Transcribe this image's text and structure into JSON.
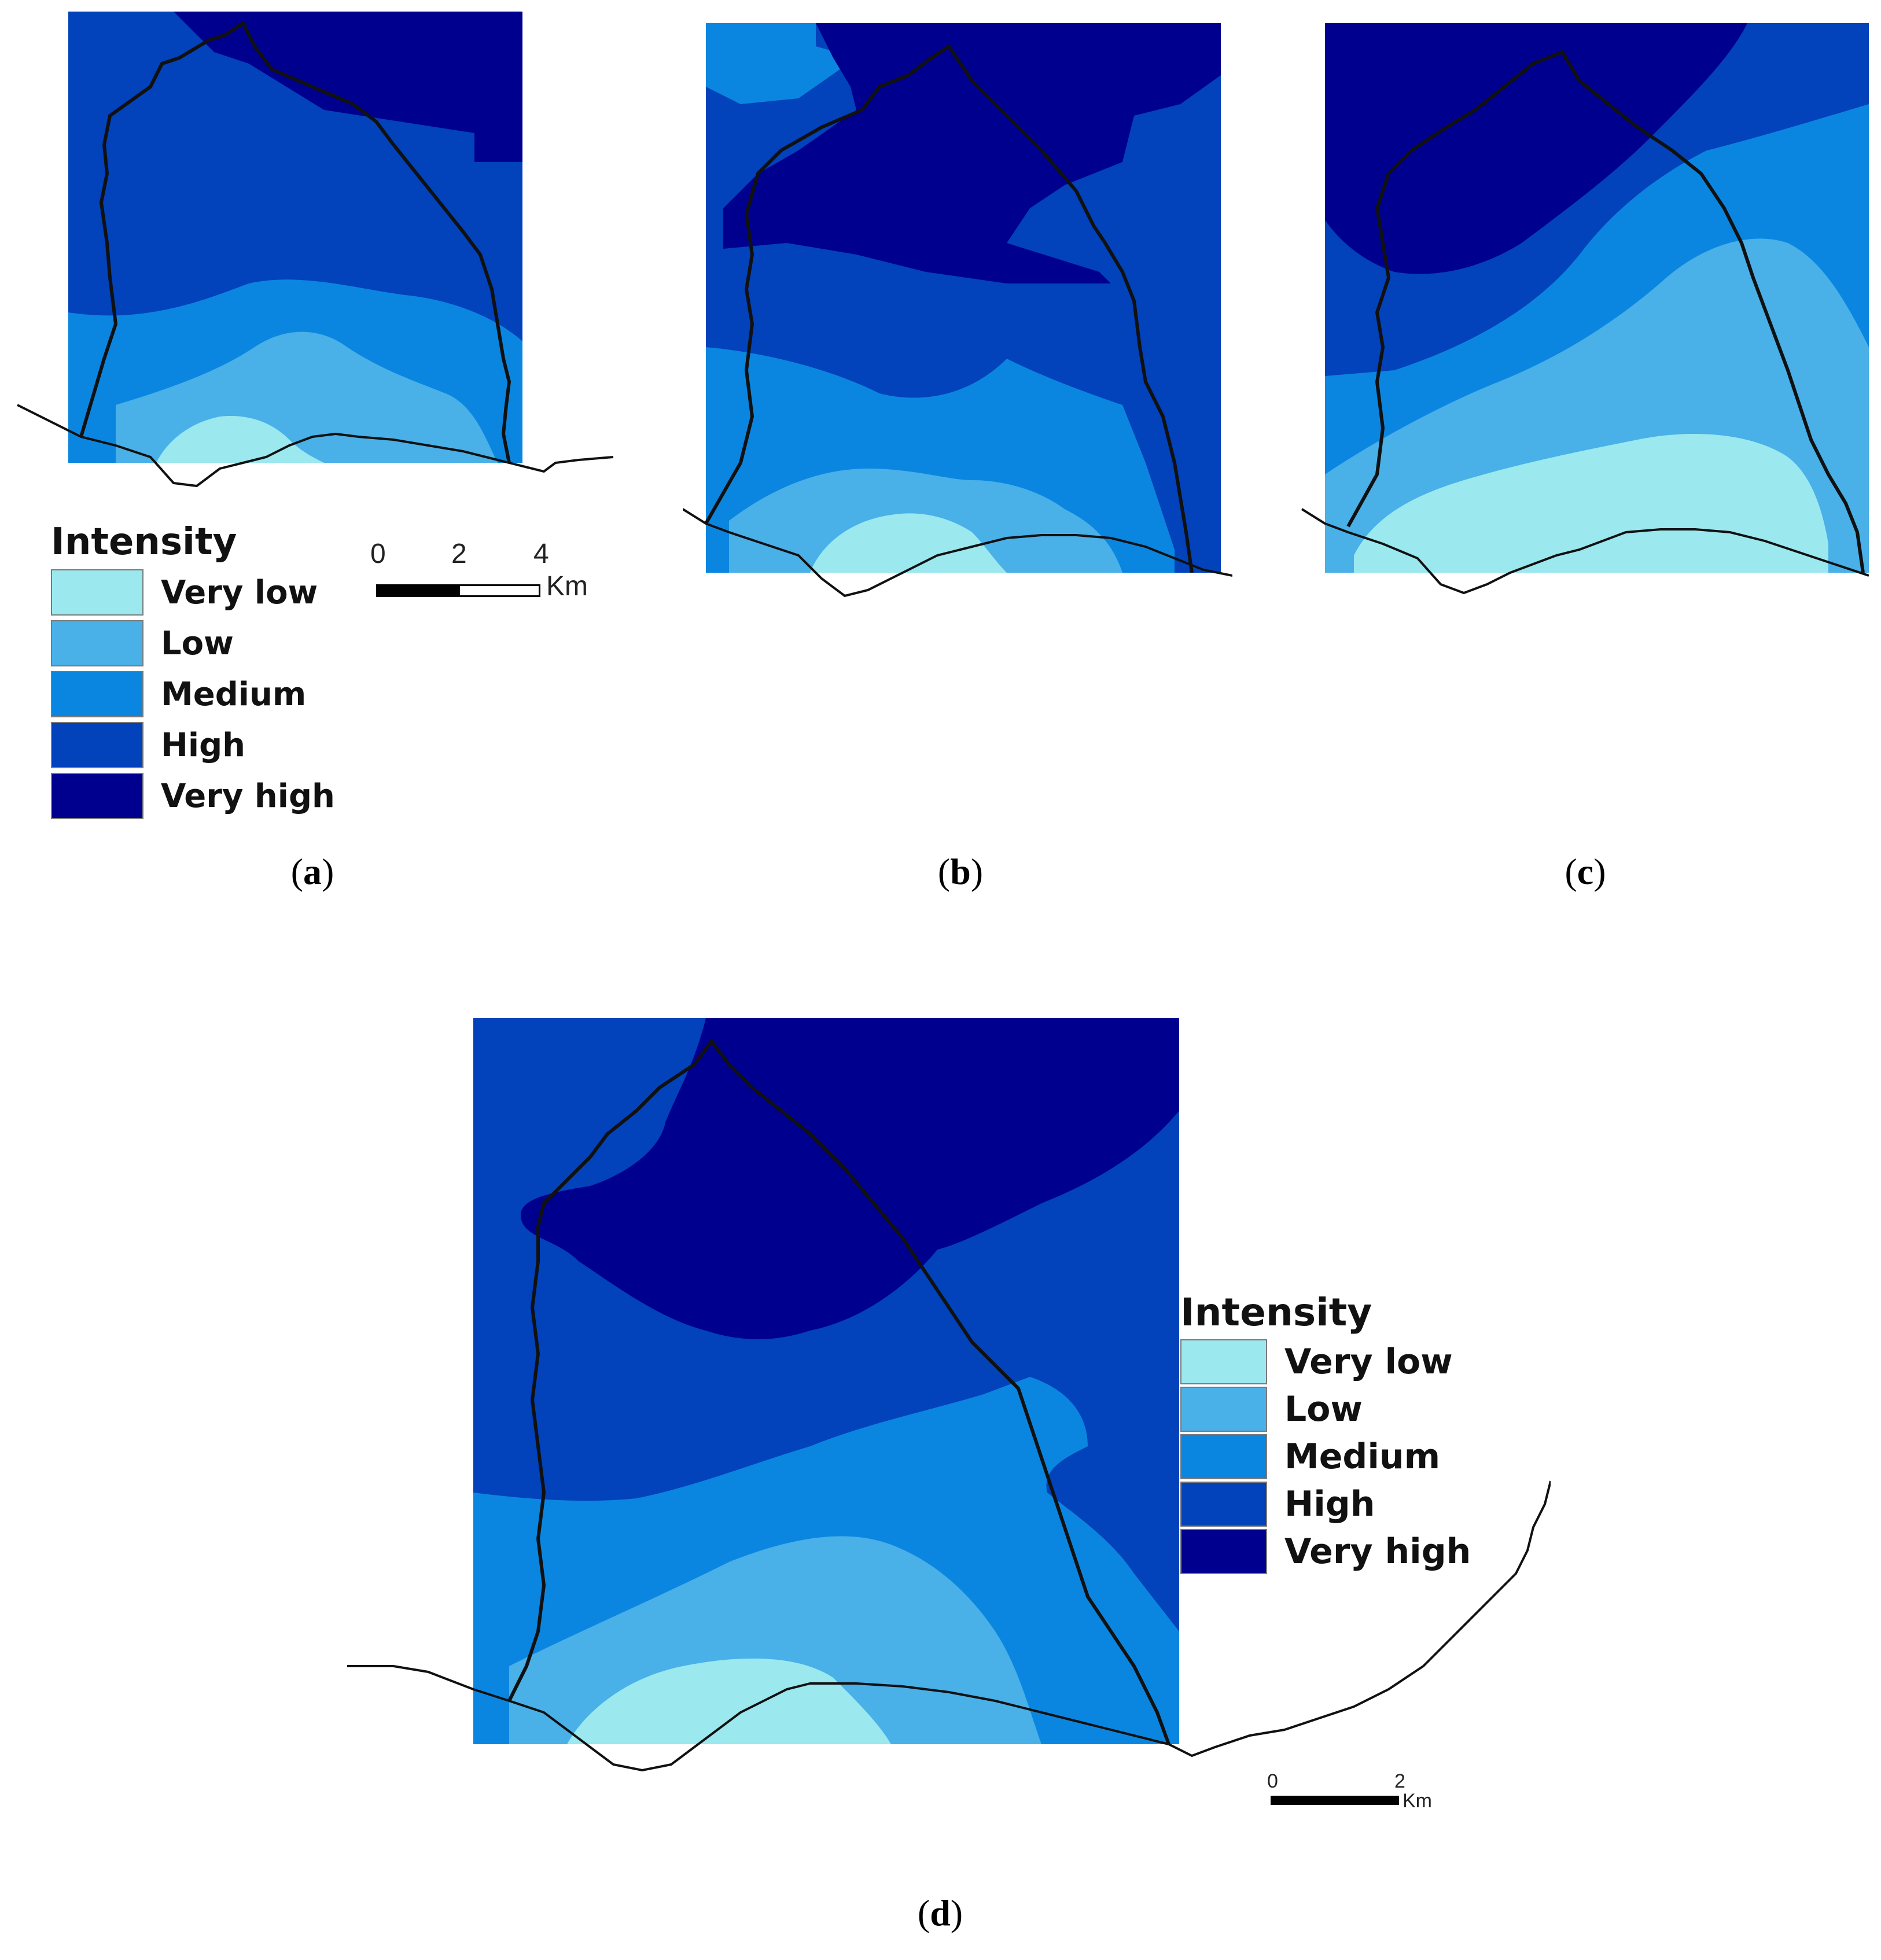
{
  "legend": {
    "title": "Intensity",
    "classes": [
      {
        "label": "Very low",
        "color": "#9be8ef"
      },
      {
        "label": "Low",
        "color": "#49b0e8"
      },
      {
        "label": "Medium",
        "color": "#0b86e0"
      },
      {
        "label": "High",
        "color": "#0242bb"
      },
      {
        "label": "Very high",
        "color": "#00008f"
      }
    ]
  },
  "panels": [
    {
      "id": "a",
      "caption": "a"
    },
    {
      "id": "b",
      "caption": "b"
    },
    {
      "id": "c",
      "caption": "c"
    },
    {
      "id": "d",
      "caption": "d"
    }
  ],
  "scalebar_a": {
    "ticks": [
      "0",
      "2",
      "4"
    ],
    "unit": "Km"
  },
  "scalebar_d": {
    "ticks": [
      "0",
      "2"
    ],
    "unit": "Km"
  },
  "caption_parens": {
    "open": "(",
    "close": ")"
  }
}
